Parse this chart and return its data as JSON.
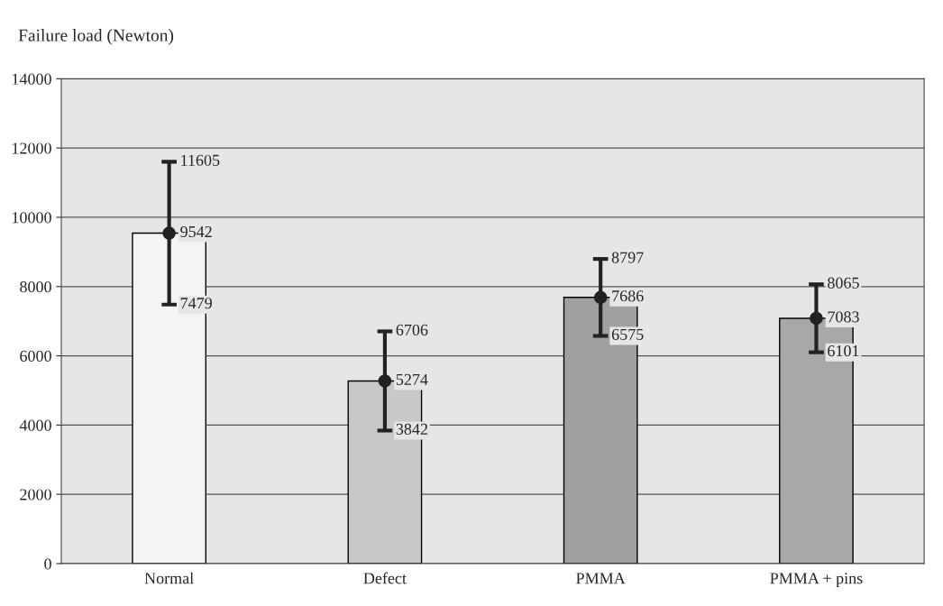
{
  "chart_data": {
    "type": "bar",
    "ylabel": "Failure load (Newton)",
    "categories": [
      "Normal",
      "Defect",
      "PMMA",
      "PMMA + pins"
    ],
    "series": [
      {
        "values": [
          9542,
          5274,
          7686,
          7083
        ],
        "colors": [
          "#f4f4f4",
          "#c8c8c8",
          "#a0a0a0",
          "#a8a8a8"
        ]
      },
      {
        "type": "scatter",
        "x": [
          "Normal",
          "Defect",
          "PMMA",
          "PMMA + pins"
        ],
        "values": [
          9542,
          5274,
          7686,
          7083
        ],
        "color": "#222222",
        "marker": "circle",
        "value_labels": [
          "9542",
          "5274",
          "7686",
          "7083"
        ],
        "errors": [
          [
            7479,
            11605
          ],
          [
            3842,
            6706
          ],
          [
            6575,
            8797
          ],
          [
            6101,
            8065
          ]
        ]
      }
    ],
    "annotations": [
      {
        "text": "11605",
        "x": "Normal",
        "y": 11605
      },
      {
        "text": "7479",
        "x": "Normal",
        "y": 7479
      },
      {
        "text": "6706",
        "x": "Defect",
        "y": 6706
      },
      {
        "text": "3842",
        "x": "Defect",
        "y": 3842
      },
      {
        "text": "8797",
        "x": "PMMA",
        "y": 8797
      },
      {
        "text": "6575",
        "x": "PMMA",
        "y": 6575
      },
      {
        "text": "8065",
        "x": "PMMA + pins",
        "y": 8065
      },
      {
        "text": "6101",
        "x": "PMMA + pins",
        "y": 6101
      }
    ],
    "ylim": [
      0,
      14000
    ],
    "yticks": [
      0,
      2000,
      4000,
      6000,
      8000,
      10000,
      12000,
      14000
    ],
    "grid": "y"
  }
}
